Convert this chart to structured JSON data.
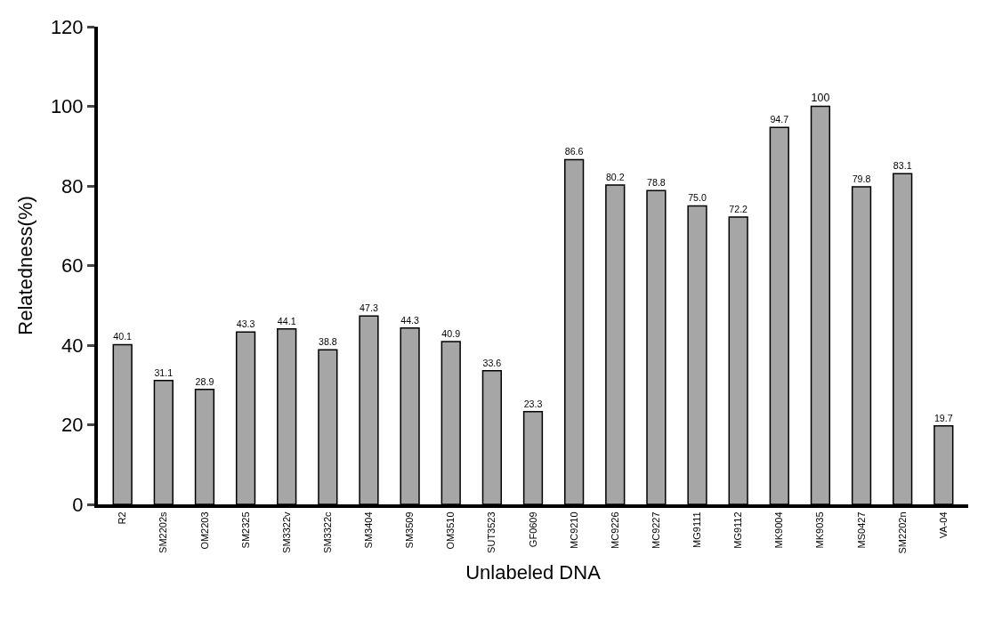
{
  "chart_data": {
    "type": "bar",
    "xlabel": "Unlabeled DNA",
    "ylabel": "Relatedness(%)",
    "categories": [
      "R2",
      "SM2202s",
      "OM2203",
      "SM2325",
      "SM3322v",
      "SM3322c",
      "SM3404",
      "SM3509",
      "OM3510",
      "SUT3523",
      "GF0609",
      "MC9210",
      "MC9226",
      "MC9227",
      "MG9111",
      "MG9112",
      "MK9004",
      "MK9035",
      "MS0427",
      "SM2202n",
      "VA-04"
    ],
    "values": [
      40.1,
      31.1,
      28.9,
      43.3,
      44.1,
      38.8,
      47.3,
      44.3,
      40.9,
      33.6,
      23.3,
      86.6,
      80.2,
      78.8,
      75.0,
      72.2,
      94.7,
      100,
      79.8,
      83.1,
      19.7
    ],
    "value_labels": [
      "40.1",
      "31.1",
      "28.9",
      "43.3",
      "44.1",
      "38.8",
      "47.3",
      "44.3",
      "40.9",
      "33.6",
      "23.3",
      "86.6",
      "80.2",
      "78.8",
      "75.0",
      "72.2",
      "94.7",
      "100",
      "79.8",
      "83.1",
      "19.7"
    ],
    "color": "#a6a6a6",
    "ylim": [
      0,
      120
    ],
    "yticks": [
      0,
      20,
      40,
      60,
      80,
      100,
      120
    ]
  }
}
